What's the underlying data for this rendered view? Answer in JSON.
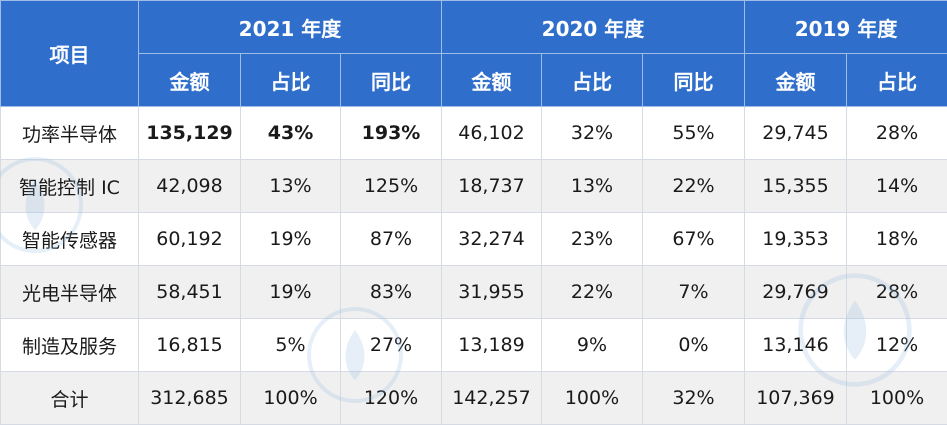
{
  "header": {
    "item_label": "项目",
    "years": [
      "2021 年度",
      "2020 年度",
      "2019 年度"
    ],
    "sub": [
      "金额",
      "占比",
      "同比",
      "金额",
      "占比",
      "同比",
      "金额",
      "占比"
    ]
  },
  "rows": [
    {
      "label": "功率半导体",
      "cells": [
        "135,129",
        "43%",
        "193%",
        "46,102",
        "32%",
        "55%",
        "29,745",
        "28%"
      ]
    },
    {
      "label": "智能控制 IC",
      "cells": [
        "42,098",
        "13%",
        "125%",
        "18,737",
        "13%",
        "22%",
        "15,355",
        "14%"
      ]
    },
    {
      "label": "智能传感器",
      "cells": [
        "60,192",
        "19%",
        "87%",
        "32,274",
        "23%",
        "67%",
        "19,353",
        "18%"
      ]
    },
    {
      "label": "光电半导体",
      "cells": [
        "58,451",
        "19%",
        "83%",
        "31,955",
        "22%",
        "7%",
        "29,769",
        "28%"
      ]
    },
    {
      "label": "制造及服务",
      "cells": [
        "16,815",
        "5%",
        "27%",
        "13,189",
        "9%",
        "0%",
        "13,146",
        "12%"
      ]
    },
    {
      "label": "合计",
      "cells": [
        "312,685",
        "100%",
        "120%",
        "142,257",
        "100%",
        "32%",
        "107,369",
        "100%"
      ]
    }
  ],
  "colors": {
    "header_bg": "#2f6fcb",
    "alt_row_bg": "#f0f0f0",
    "watermark": "#8fb8e0"
  },
  "watermark_icon": "chip-brand-logo"
}
